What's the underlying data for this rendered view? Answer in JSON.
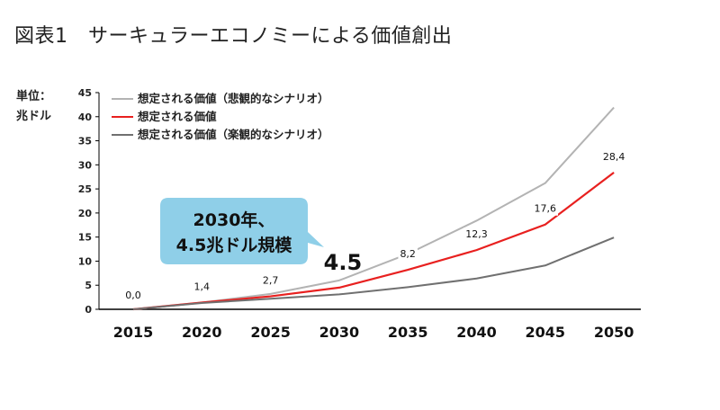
{
  "figure": {
    "title": "図表1　サーキュラーエコノミーによる価値創出"
  },
  "chart_data": {
    "type": "line",
    "unit_label": [
      "単位：",
      "兆ドル"
    ],
    "x": [
      2015,
      2020,
      2025,
      2030,
      2035,
      2040,
      2045,
      2050
    ],
    "ylim": [
      0,
      45
    ],
    "yticks": [
      0,
      5,
      10,
      15,
      20,
      25,
      30,
      35,
      40,
      45
    ],
    "grid": false,
    "legend_position": "top-left",
    "series": [
      {
        "name": "想定される価値（悲観的なシナリオ）",
        "color": "#b3b3b3",
        "values": [
          0,
          1.4,
          3.2,
          6.0,
          11.5,
          18.4,
          26.2,
          41.9
        ]
      },
      {
        "name": "想定される価値",
        "color": "#e8201f",
        "values": [
          0,
          1.4,
          2.7,
          4.5,
          8.2,
          12.3,
          17.6,
          28.4
        ],
        "data_labels": [
          "0,0",
          "1,4",
          "2,7",
          "4.5",
          "8,2",
          "12,3",
          "17,6",
          "28,4"
        ]
      },
      {
        "name": "想定される価値（楽観的なシナリオ）",
        "color": "#707070",
        "values": [
          0,
          1.3,
          2.2,
          3.1,
          4.6,
          6.4,
          9.1,
          14.9
        ]
      }
    ],
    "callout": {
      "lines": [
        "2030年、",
        "4.5兆ドル規模"
      ],
      "fill": "#8fcfe8"
    }
  }
}
